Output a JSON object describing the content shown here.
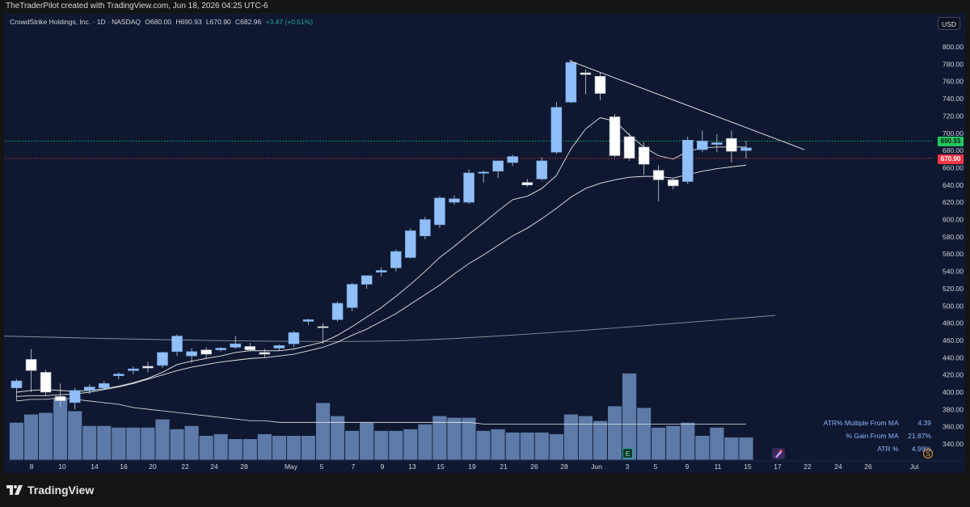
{
  "header": {
    "attribution": "TheTraderPilot created with TradingView.com, Jun 18, 2026 04:25 UTC-6"
  },
  "legend": {
    "symbol": "CrowdStrike Holdings, Inc. · 1D · NASDAQ",
    "open": "O680.00",
    "high": "H690.93",
    "low": "L670.90",
    "close": "C682.96",
    "change": "+3.47 (+0.51%)"
  },
  "currency_button": "USD",
  "price_labels": {
    "high": "690.93",
    "low": "670.90"
  },
  "stats": [
    {
      "label": "ATR% Multiple From MA",
      "value": "4.39"
    },
    {
      "label": "% Gain From MA",
      "value": "21.87%"
    },
    {
      "label": "ATR %",
      "value": "4.99%"
    }
  ],
  "badges": {
    "earnings": "E",
    "symbol_s": "S"
  },
  "brand": {
    "name": "TradingView"
  },
  "colors": {
    "background": "#0f1830",
    "up_candle": "#90bff9",
    "down_candle": "#ffffff",
    "volume": "#5d7aa8",
    "high_line": "#22c55e",
    "low_line": "#f23645",
    "stats_text": "#8fb4ff"
  },
  "chart_data": {
    "type": "candlestick",
    "y_ticks": [
      340,
      360,
      380,
      400,
      420,
      440,
      460,
      480,
      500,
      520,
      540,
      560,
      580,
      600,
      620,
      640,
      660,
      680,
      700,
      720,
      740,
      760,
      780,
      800
    ],
    "ylim": [
      326,
      808
    ],
    "x_labels": [
      "8",
      "10",
      "14",
      "16",
      "20",
      "22",
      "24",
      "28",
      "May",
      "5",
      "7",
      "9",
      "13",
      "15",
      "19",
      "21",
      "26",
      "28",
      "Jun",
      "3",
      "5",
      "9",
      "11",
      "15",
      "17",
      "22",
      "24",
      "26",
      "Jul"
    ],
    "candles": [
      {
        "o": 405,
        "h": 415,
        "l": 390,
        "c": 413
      },
      {
        "o": 438,
        "h": 450,
        "l": 400,
        "c": 425
      },
      {
        "o": 423,
        "h": 426,
        "l": 396,
        "c": 400
      },
      {
        "o": 395,
        "h": 410,
        "l": 383,
        "c": 390
      },
      {
        "o": 388,
        "h": 405,
        "l": 380,
        "c": 402
      },
      {
        "o": 402,
        "h": 409,
        "l": 398,
        "c": 406
      },
      {
        "o": 405,
        "h": 413,
        "l": 404,
        "c": 410
      },
      {
        "o": 419,
        "h": 423,
        "l": 415,
        "c": 421
      },
      {
        "o": 425,
        "h": 430,
        "l": 421,
        "c": 427
      },
      {
        "o": 430,
        "h": 435,
        "l": 423,
        "c": 428
      },
      {
        "o": 431,
        "h": 447,
        "l": 428,
        "c": 446
      },
      {
        "o": 447,
        "h": 467,
        "l": 442,
        "c": 465
      },
      {
        "o": 442,
        "h": 451,
        "l": 434,
        "c": 447
      },
      {
        "o": 449,
        "h": 452,
        "l": 439,
        "c": 444
      },
      {
        "o": 449,
        "h": 452,
        "l": 447,
        "c": 451
      },
      {
        "o": 452,
        "h": 465,
        "l": 450,
        "c": 456
      },
      {
        "o": 453,
        "h": 457,
        "l": 448,
        "c": 449
      },
      {
        "o": 446,
        "h": 450,
        "l": 440,
        "c": 444
      },
      {
        "o": 451,
        "h": 455,
        "l": 448,
        "c": 454
      },
      {
        "o": 456,
        "h": 471,
        "l": 452,
        "c": 469
      },
      {
        "o": 482,
        "h": 485,
        "l": 478,
        "c": 484
      },
      {
        "o": 476,
        "h": 480,
        "l": 456,
        "c": 475
      },
      {
        "o": 484,
        "h": 505,
        "l": 482,
        "c": 503
      },
      {
        "o": 498,
        "h": 527,
        "l": 494,
        "c": 525
      },
      {
        "o": 525,
        "h": 535,
        "l": 520,
        "c": 535
      },
      {
        "o": 539,
        "h": 545,
        "l": 534,
        "c": 541
      },
      {
        "o": 544,
        "h": 565,
        "l": 540,
        "c": 563
      },
      {
        "o": 556,
        "h": 590,
        "l": 555,
        "c": 587
      },
      {
        "o": 581,
        "h": 603,
        "l": 577,
        "c": 600
      },
      {
        "o": 594,
        "h": 627,
        "l": 590,
        "c": 625
      },
      {
        "o": 620,
        "h": 628,
        "l": 617,
        "c": 624
      },
      {
        "o": 620,
        "h": 658,
        "l": 618,
        "c": 654
      },
      {
        "o": 654,
        "h": 657,
        "l": 643,
        "c": 655
      },
      {
        "o": 656,
        "h": 668,
        "l": 648,
        "c": 668
      },
      {
        "o": 666,
        "h": 675,
        "l": 662,
        "c": 673
      },
      {
        "o": 643,
        "h": 647,
        "l": 638,
        "c": 640
      },
      {
        "o": 647,
        "h": 672,
        "l": 645,
        "c": 668
      },
      {
        "o": 678,
        "h": 736,
        "l": 676,
        "c": 730
      },
      {
        "o": 736,
        "h": 785,
        "l": 735,
        "c": 782
      },
      {
        "o": 770,
        "h": 774,
        "l": 745,
        "c": 768
      },
      {
        "o": 766,
        "h": 770,
        "l": 738,
        "c": 746
      },
      {
        "o": 719,
        "h": 722,
        "l": 672,
        "c": 674
      },
      {
        "o": 696,
        "h": 700,
        "l": 668,
        "c": 671
      },
      {
        "o": 684,
        "h": 690,
        "l": 652,
        "c": 664
      },
      {
        "o": 657,
        "h": 663,
        "l": 621,
        "c": 646
      },
      {
        "o": 646,
        "h": 648,
        "l": 635,
        "c": 639
      },
      {
        "o": 644,
        "h": 696,
        "l": 641,
        "c": 692
      },
      {
        "o": 681,
        "h": 703,
        "l": 678,
        "c": 691
      },
      {
        "o": 687,
        "h": 699,
        "l": 678,
        "c": 689
      },
      {
        "o": 694,
        "h": 703,
        "l": 666,
        "c": 679
      },
      {
        "o": 680,
        "h": 691,
        "l": 671,
        "c": 683
      }
    ],
    "ma_short": [
      400,
      402,
      403,
      402,
      401,
      402,
      404,
      407,
      411,
      416,
      423,
      432,
      436,
      439,
      442,
      446,
      448,
      448,
      448,
      450,
      454,
      458,
      466,
      476,
      487,
      498,
      511,
      525,
      540,
      556,
      569,
      583,
      596,
      610,
      623,
      627,
      636,
      651,
      682,
      705,
      718,
      714,
      698,
      684,
      674,
      670,
      679,
      683,
      684,
      684,
      684
    ],
    "ma_medium": [
      395,
      396,
      396,
      397,
      398,
      400,
      403,
      406,
      410,
      415,
      420,
      425,
      429,
      432,
      435,
      437,
      439,
      440,
      442,
      444,
      448,
      452,
      458,
      466,
      473,
      482,
      491,
      502,
      513,
      524,
      537,
      549,
      559,
      570,
      581,
      590,
      601,
      613,
      626,
      636,
      642,
      646,
      649,
      650,
      650,
      648,
      652,
      656,
      659,
      661,
      663
    ],
    "ma_long": {
      "start": 465,
      "mid": 460,
      "end": 489
    },
    "volume": [
      23,
      28,
      29,
      38,
      30,
      21,
      21,
      20,
      20,
      20,
      25,
      19,
      21,
      15,
      16,
      13,
      13,
      16,
      15,
      15,
      15,
      35,
      27,
      18,
      23,
      18,
      18,
      19,
      22,
      27,
      26,
      26,
      18,
      19,
      17,
      17,
      17,
      16,
      28,
      27,
      24,
      33,
      53,
      32,
      20,
      21,
      23,
      15,
      20,
      14,
      14
    ],
    "volume_ma": [
      36,
      37,
      37,
      38,
      37,
      36,
      35,
      34,
      32,
      31,
      30,
      29,
      28,
      27,
      26,
      25,
      24,
      24,
      23,
      23,
      23,
      23,
      23,
      23,
      23,
      23,
      23,
      23,
      23,
      23,
      23,
      23,
      22,
      22,
      22,
      22,
      22,
      22,
      22,
      22,
      22,
      22,
      22,
      22,
      22,
      22,
      22,
      22,
      22,
      22,
      22
    ],
    "trendline": [
      {
        "index": 38,
        "value": 784
      },
      {
        "index": 54,
        "value": 681
      }
    ]
  }
}
